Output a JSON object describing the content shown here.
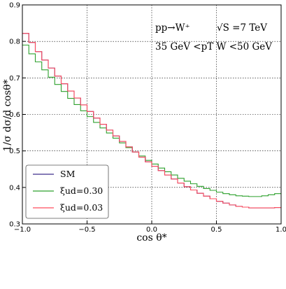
{
  "chart_data": {
    "type": "line",
    "xlabel": "cos θ*",
    "ylabel": "1/σ dσ/d cosθ*",
    "xlim": [
      -1.0,
      1.0
    ],
    "ylim": [
      0.3,
      0.9
    ],
    "x_ticks": [
      "−1.0",
      "−0.5",
      "0.0",
      "0.5",
      "1.0"
    ],
    "y_ticks": [
      "0.3",
      "0.4",
      "0.5",
      "0.6",
      "0.7",
      "0.8",
      "0.9"
    ],
    "grid": true,
    "legend_position": "bottom-left",
    "annotations": {
      "process": "pp→W⁺",
      "energy": "√S =7 TeV",
      "cut": "35 GeV <pT W <50 GeV"
    },
    "bin_edges": [
      -1.0,
      -0.95,
      -0.9,
      -0.85,
      -0.8,
      -0.75,
      -0.7,
      -0.65,
      -0.6,
      -0.55,
      -0.5,
      -0.45,
      -0.4,
      -0.35,
      -0.3,
      -0.25,
      -0.2,
      -0.15,
      -0.1,
      -0.05,
      0.0,
      0.05,
      0.1,
      0.15,
      0.2,
      0.25,
      0.3,
      0.35,
      0.4,
      0.45,
      0.5,
      0.55,
      0.6,
      0.65,
      0.7,
      0.75,
      0.8,
      0.85,
      0.9,
      0.95,
      1.0
    ],
    "series": [
      {
        "name": "SM",
        "color": "#3f2d8c",
        "values": [
          0.822,
          0.797,
          0.772,
          0.749,
          0.727,
          0.705,
          0.684,
          0.664,
          0.645,
          0.626,
          0.608,
          0.59,
          0.573,
          0.557,
          0.541,
          0.526,
          0.511,
          0.497,
          0.483,
          0.47,
          0.458,
          0.446,
          0.434,
          0.423,
          0.412,
          0.402,
          0.393,
          0.384,
          0.376,
          0.369,
          0.362,
          0.357,
          0.352,
          0.348,
          0.346,
          0.344,
          0.344,
          0.344,
          0.344,
          0.345
        ]
      },
      {
        "name": "ξud=0.30",
        "color": "#2ca02c",
        "values": [
          0.79,
          0.766,
          0.744,
          0.722,
          0.702,
          0.682,
          0.663,
          0.644,
          0.627,
          0.61,
          0.594,
          0.578,
          0.563,
          0.549,
          0.535,
          0.522,
          0.509,
          0.497,
          0.486,
          0.474,
          0.464,
          0.453,
          0.443,
          0.434,
          0.425,
          0.417,
          0.41,
          0.403,
          0.397,
          0.392,
          0.387,
          0.383,
          0.38,
          0.377,
          0.376,
          0.375,
          0.375,
          0.377,
          0.38,
          0.383
        ]
      },
      {
        "name": "ξud=0.03",
        "color": "#ff4d5e",
        "values": [
          0.822,
          0.797,
          0.772,
          0.749,
          0.727,
          0.705,
          0.684,
          0.664,
          0.645,
          0.626,
          0.608,
          0.59,
          0.573,
          0.557,
          0.541,
          0.526,
          0.511,
          0.497,
          0.483,
          0.47,
          0.458,
          0.446,
          0.434,
          0.423,
          0.412,
          0.402,
          0.393,
          0.384,
          0.376,
          0.369,
          0.362,
          0.357,
          0.352,
          0.348,
          0.346,
          0.344,
          0.344,
          0.344,
          0.344,
          0.345
        ]
      }
    ]
  }
}
